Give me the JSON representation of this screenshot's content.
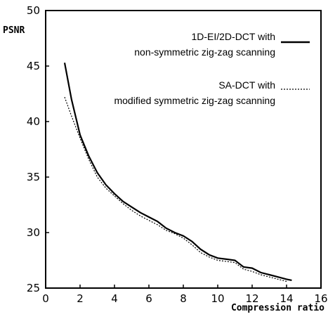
{
  "chart_data": {
    "type": "line",
    "title": "",
    "xlabel": "Compression ratio",
    "ylabel": "PSNR",
    "xlim": [
      0,
      16
    ],
    "ylim": [
      25,
      50
    ],
    "x_ticks": [
      "0",
      "2",
      "4",
      "6",
      "8",
      "10",
      "12",
      "14",
      "16"
    ],
    "y_ticks": [
      "25",
      "30",
      "35",
      "40",
      "45",
      "50"
    ],
    "grid": false,
    "legend_placement": "top-right",
    "series": [
      {
        "name_lines": [
          "1D-EI/2D-DCT with",
          "non-symmetric zig-zag scanning"
        ],
        "style": "solid",
        "color": "#000000",
        "x": [
          1.1,
          1.5,
          2.0,
          2.5,
          3.0,
          3.5,
          4.0,
          4.5,
          5.0,
          5.5,
          6.0,
          6.5,
          7.0,
          7.5,
          8.0,
          8.5,
          9.0,
          9.5,
          10.0,
          10.5,
          11.0,
          11.5,
          12.0,
          12.5,
          13.0,
          13.5,
          14.0,
          14.3
        ],
        "y": [
          45.3,
          42.0,
          38.8,
          36.9,
          35.4,
          34.3,
          33.5,
          32.8,
          32.3,
          31.8,
          31.4,
          31.0,
          30.4,
          30.0,
          29.7,
          29.2,
          28.5,
          28.0,
          27.7,
          27.6,
          27.5,
          26.9,
          26.8,
          26.4,
          26.2,
          26.0,
          25.8,
          25.7
        ]
      },
      {
        "name_lines": [
          "SA-DCT with",
          "modified symmetric zig-zag scanning"
        ],
        "style": "dotted",
        "color": "#000000",
        "x": [
          1.1,
          1.5,
          2.0,
          2.5,
          3.0,
          3.5,
          4.0,
          4.5,
          5.0,
          5.5,
          6.0,
          6.5,
          7.0,
          7.5,
          8.0,
          8.5,
          9.0,
          9.5,
          10.0,
          10.5,
          11.0,
          11.5,
          12.0,
          12.5,
          13.0,
          13.5,
          14.0
        ],
        "y": [
          42.2,
          40.5,
          38.5,
          36.6,
          35.0,
          34.0,
          33.3,
          32.6,
          32.0,
          31.5,
          31.1,
          30.7,
          30.2,
          29.9,
          29.5,
          28.9,
          28.2,
          27.8,
          27.5,
          27.4,
          27.3,
          26.7,
          26.5,
          26.2,
          26.0,
          25.8,
          25.6
        ]
      }
    ]
  }
}
